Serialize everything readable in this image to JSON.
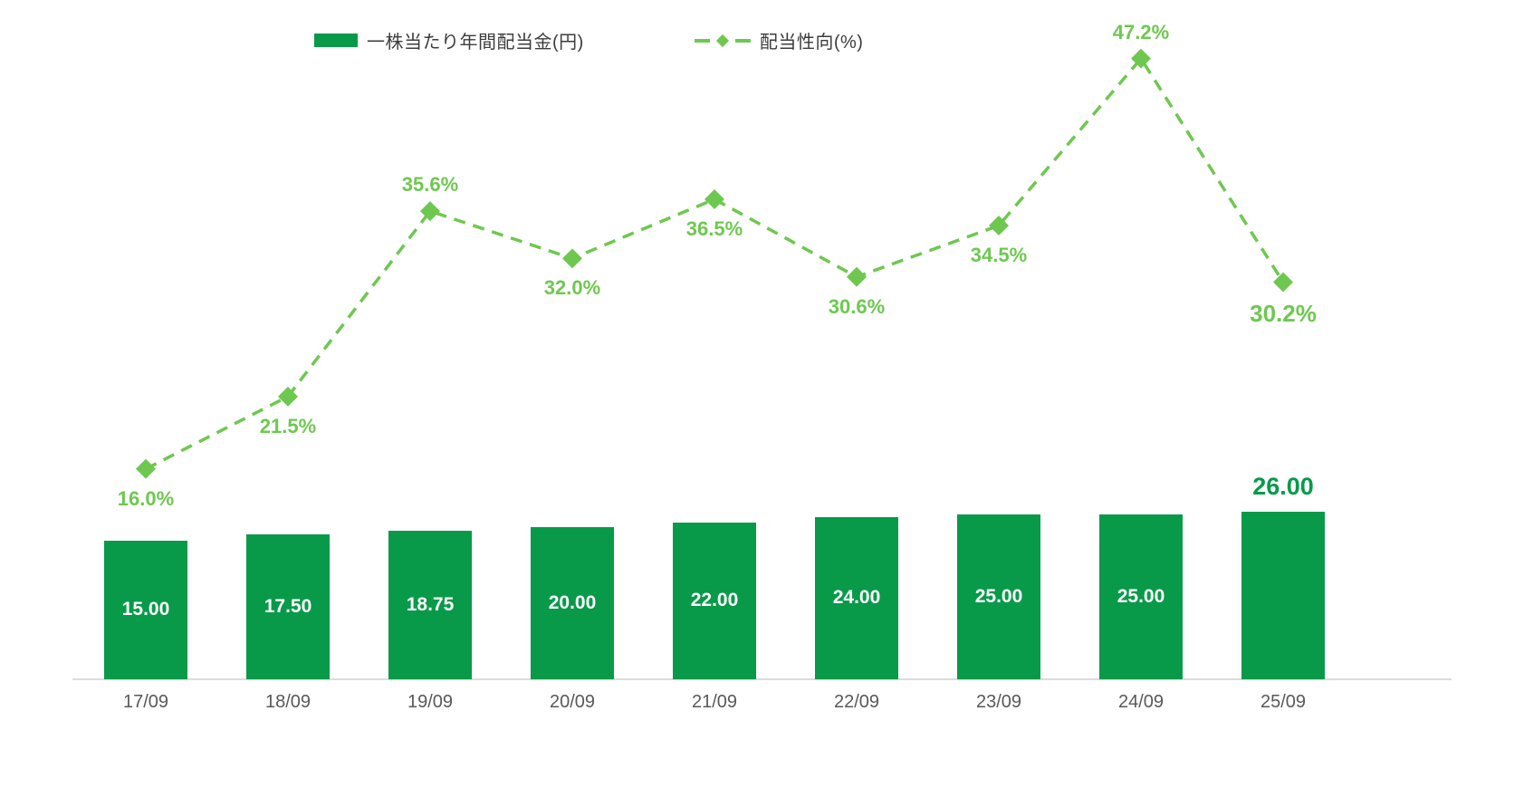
{
  "legend": {
    "bar_label": "一株当たり年間配当金(円)",
    "line_label": "配当性向(%)"
  },
  "colors": {
    "bar": "#089a49",
    "line": "#6ec850",
    "axis_text": "#595959",
    "axis_line": "#dcdcdc",
    "bar_inner_text": "#ffffff"
  },
  "chart_data": {
    "type": "bar",
    "subtype": "bar+line-combo",
    "categories": [
      "17/09",
      "18/09",
      "19/09",
      "20/09",
      "21/09",
      "22/09",
      "23/09",
      "24/09",
      "25/09"
    ],
    "series": [
      {
        "name": "一株当たり年間配当金(円)",
        "type": "bar",
        "values": [
          15.0,
          17.5,
          18.75,
          20.0,
          22.0,
          24.0,
          25.0,
          25.0,
          26.0
        ],
        "labels": [
          "15.00",
          "17.50",
          "18.75",
          "20.00",
          "22.00",
          "24.00",
          "25.00",
          "25.00",
          "26.00"
        ]
      },
      {
        "name": "配当性向(%)",
        "type": "line",
        "line_style": "dashed",
        "marker": "diamond",
        "values": [
          16.0,
          21.5,
          35.6,
          32.0,
          36.5,
          30.6,
          34.5,
          47.2,
          30.2
        ],
        "labels": [
          "16.0%",
          "21.5%",
          "35.6%",
          "32.0%",
          "36.5%",
          "30.6%",
          "34.5%",
          "47.2%",
          "30.2%"
        ],
        "label_positions": [
          "below",
          "below",
          "above",
          "below",
          "below",
          "below",
          "below",
          "above",
          "below"
        ]
      }
    ],
    "title": "",
    "xlabel": "",
    "ylabel": "",
    "y_axis_visible": false,
    "grid": false,
    "legend_position": "top",
    "highlight_last_index": 8,
    "line_axis_range_pct": [
      0,
      51.6
    ]
  }
}
